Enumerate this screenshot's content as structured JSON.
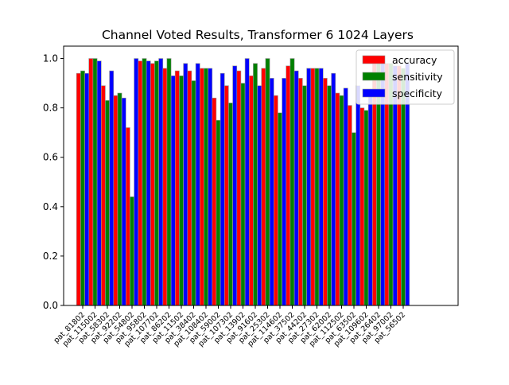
{
  "chart_data": {
    "type": "bar",
    "title": "Channel Voted Results, Transformer 6 1024 Layers",
    "xlabel": "",
    "ylabel": "",
    "ylim": [
      0,
      1.05
    ],
    "yticks": [
      "0.0",
      "0.2",
      "0.4",
      "0.6",
      "0.8",
      "1.0"
    ],
    "grid": false,
    "legend_position": "top-right",
    "categories": [
      "pat_81802",
      "pat_115002",
      "pat_58302",
      "pat_92202",
      "pat_54802",
      "pat_95802",
      "pat_107702",
      "pat_86202",
      "pat_11502",
      "pat_38402",
      "pat_108402",
      "pat_59002",
      "pat_107302",
      "pat_13902",
      "pat_91602",
      "pat_25302",
      "pat_114602",
      "pat_37502",
      "pat_44202",
      "pat_27302",
      "pat_62002",
      "pat_112502",
      "pat_63502",
      "pat_109602",
      "pat_26402",
      "pat_97002",
      "pat_56502"
    ],
    "series": [
      {
        "name": "accuracy",
        "color": "#ff0000",
        "values": [
          0.94,
          1.0,
          0.89,
          0.85,
          0.72,
          0.99,
          0.98,
          0.96,
          0.95,
          0.95,
          0.96,
          0.84,
          0.89,
          0.95,
          0.93,
          0.96,
          0.85,
          0.97,
          0.92,
          0.96,
          0.92,
          0.86,
          0.81,
          0.8,
          0.98,
          0.98,
          0.97
        ]
      },
      {
        "name": "sensitivity",
        "color": "#008000",
        "values": [
          0.95,
          1.0,
          0.83,
          0.86,
          0.44,
          1.0,
          0.99,
          1.0,
          0.93,
          0.91,
          0.96,
          0.75,
          0.82,
          0.9,
          0.98,
          1.0,
          0.78,
          1.0,
          0.89,
          0.96,
          0.89,
          0.85,
          0.7,
          0.79,
          1.0,
          0.98,
          0.96
        ]
      },
      {
        "name": "specificity",
        "color": "#0000ff",
        "values": [
          0.94,
          0.99,
          0.95,
          0.84,
          1.0,
          0.99,
          1.0,
          0.93,
          0.98,
          0.98,
          0.96,
          0.94,
          0.97,
          1.0,
          0.89,
          0.92,
          0.92,
          0.95,
          0.96,
          0.96,
          0.94,
          0.88,
          0.89,
          0.87,
          0.98,
          0.97,
          0.98
        ]
      }
    ]
  }
}
